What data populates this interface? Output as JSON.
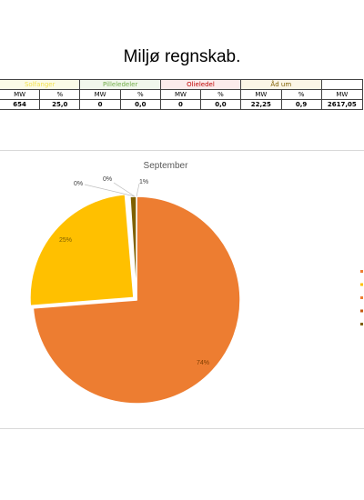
{
  "document": {
    "title": "Miljø regnskab."
  },
  "table": {
    "groups": [
      {
        "label": "Solfanger",
        "color": "#f2e14c",
        "bg": "#fbfbe7"
      },
      {
        "label": "Pilleledeler",
        "color": "#70ad47",
        "bg": "#f1f7ec"
      },
      {
        "label": "Olieledel",
        "color": "#c00000",
        "bg": "#fbecec"
      },
      {
        "label": "Åd um",
        "color": "#7f6000",
        "bg": "#fbf6e6"
      }
    ],
    "units": [
      "MW",
      "%",
      "MW",
      "%",
      "MW",
      "%",
      "MW",
      "%",
      "MW"
    ],
    "values": [
      "654",
      "25,0",
      "0",
      "0,0",
      "0",
      "0,0",
      "22,25",
      "0,9",
      "2617,05"
    ]
  },
  "chart_data": {
    "type": "pie",
    "title": "September",
    "slices": [
      {
        "value": 74,
        "label": "74%",
        "color": "#ed7d31"
      },
      {
        "value": 25,
        "label": "25%",
        "color": "#ffc000"
      },
      {
        "value": 0,
        "label": "0%",
        "color": "#a5a5a5"
      },
      {
        "value": 0,
        "label": "0%",
        "color": "#5b9bd5"
      },
      {
        "value": 1,
        "label": "1%",
        "color": "#7f6000"
      }
    ],
    "legend_position": "right",
    "legend_markers": [
      "#ed7d31",
      "#ffc000",
      "#ed7d31",
      "#c55a11",
      "#7f6000"
    ]
  }
}
